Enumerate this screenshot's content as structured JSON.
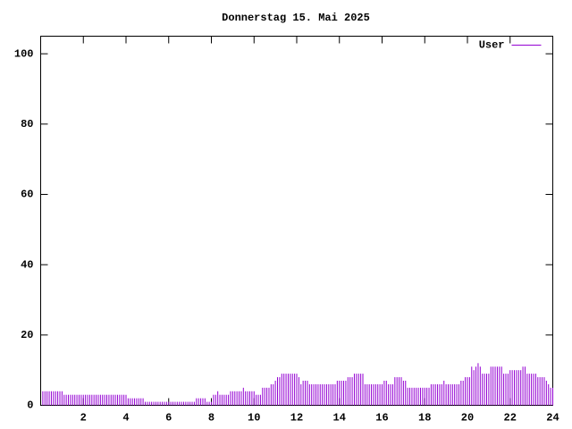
{
  "chart_data": {
    "type": "impulses",
    "title": "Donnerstag 15. Mai 2025",
    "x": [
      0.1,
      0.2,
      0.3,
      0.4,
      0.5,
      0.6,
      0.7,
      0.8,
      0.9,
      1,
      1.1,
      1.2,
      1.3,
      1.4,
      1.5,
      1.6,
      1.7,
      1.8,
      1.9,
      2,
      2.1,
      2.2,
      2.3,
      2.4,
      2.5,
      2.6,
      2.7,
      2.8,
      2.9,
      3,
      3.1,
      3.2,
      3.3,
      3.4,
      3.5,
      3.6,
      3.7,
      3.8,
      3.9,
      4,
      4.1,
      4.2,
      4.3,
      4.4,
      4.5,
      4.6,
      4.7,
      4.8,
      4.9,
      5,
      5.1,
      5.2,
      5.3,
      5.4,
      5.5,
      5.6,
      5.7,
      5.8,
      5.9,
      6,
      6.1,
      6.2,
      6.3,
      6.4,
      6.5,
      6.6,
      6.7,
      6.8,
      6.9,
      7,
      7.1,
      7.2,
      7.3,
      7.4,
      7.5,
      7.6,
      7.7,
      7.8,
      7.9,
      8,
      8.1,
      8.2,
      8.3,
      8.4,
      8.5,
      8.6,
      8.7,
      8.8,
      8.9,
      9,
      9.1,
      9.2,
      9.3,
      9.4,
      9.5,
      9.6,
      9.7,
      9.8,
      9.9,
      10,
      10.1,
      10.2,
      10.3,
      10.4,
      10.5,
      10.6,
      10.7,
      10.8,
      10.9,
      11,
      11.1,
      11.2,
      11.3,
      11.4,
      11.5,
      11.6,
      11.7,
      11.8,
      11.9,
      12,
      12.1,
      12.2,
      12.3,
      12.4,
      12.5,
      12.6,
      12.7,
      12.8,
      12.9,
      13,
      13.1,
      13.2,
      13.3,
      13.4,
      13.5,
      13.6,
      13.7,
      13.8,
      13.9,
      14,
      14.1,
      14.2,
      14.3,
      14.4,
      14.5,
      14.6,
      14.7,
      14.8,
      14.9,
      15,
      15.1,
      15.2,
      15.3,
      15.4,
      15.5,
      15.6,
      15.7,
      15.8,
      15.9,
      16,
      16.1,
      16.2,
      16.3,
      16.4,
      16.5,
      16.6,
      16.7,
      16.8,
      16.9,
      17,
      17.1,
      17.2,
      17.3,
      17.4,
      17.5,
      17.6,
      17.7,
      17.8,
      17.9,
      18,
      18.1,
      18.2,
      18.3,
      18.4,
      18.5,
      18.6,
      18.7,
      18.8,
      18.9,
      19,
      19.1,
      19.2,
      19.3,
      19.4,
      19.5,
      19.6,
      19.7,
      19.8,
      19.9,
      20,
      20.1,
      20.2,
      20.3,
      20.4,
      20.5,
      20.6,
      20.7,
      20.8,
      20.9,
      21,
      21.1,
      21.2,
      21.3,
      21.4,
      21.5,
      21.6,
      21.7,
      21.8,
      21.9,
      22,
      22.1,
      22.2,
      22.3,
      22.4,
      22.5,
      22.6,
      22.7,
      22.8,
      22.9,
      23,
      23.1,
      23.2,
      23.3,
      23.4,
      23.5,
      23.6,
      23.7,
      23.8,
      23.9,
      24
    ],
    "series": [
      {
        "name": "User",
        "color": "#9400d3",
        "values": [
          4,
          4,
          4,
          4,
          4,
          4,
          4,
          4,
          4,
          4,
          3,
          3,
          3,
          3,
          3,
          3,
          3,
          3,
          3,
          3,
          3,
          3,
          3,
          3,
          3,
          3,
          3,
          3,
          3,
          3,
          3,
          3,
          3,
          3,
          3,
          3,
          3,
          3,
          3,
          3,
          2,
          2,
          2,
          2,
          2,
          2,
          2,
          2,
          1,
          1,
          1,
          1,
          1,
          1,
          1,
          1,
          1,
          1,
          1,
          1,
          1,
          1,
          1,
          1,
          1,
          1,
          1,
          1,
          1,
          1,
          1,
          1,
          2,
          2,
          2,
          2,
          2,
          1,
          1,
          1,
          3,
          3,
          4,
          3,
          3,
          3,
          3,
          3,
          4,
          4,
          4,
          4,
          4,
          4,
          5,
          4,
          4,
          4,
          4,
          4,
          3,
          3,
          3,
          5,
          5,
          5,
          5,
          6,
          6,
          7,
          8,
          8,
          9,
          9,
          9,
          9,
          9,
          9,
          9,
          9,
          8,
          6,
          7,
          7,
          7,
          6,
          6,
          6,
          6,
          6,
          6,
          6,
          6,
          6,
          6,
          6,
          6,
          6,
          7,
          7,
          7,
          7,
          7,
          8,
          8,
          8,
          9,
          9,
          9,
          9,
          9,
          6,
          6,
          6,
          6,
          6,
          6,
          6,
          6,
          6,
          7,
          7,
          6,
          6,
          6,
          8,
          8,
          8,
          8,
          7,
          7,
          5,
          5,
          5,
          5,
          5,
          5,
          5,
          5,
          5,
          5,
          5,
          6,
          6,
          6,
          6,
          6,
          6,
          7,
          6,
          6,
          6,
          6,
          6,
          6,
          6,
          7,
          7,
          8,
          8,
          8,
          11,
          10,
          11,
          12,
          11,
          9,
          9,
          9,
          9,
          11,
          11,
          11,
          11,
          11,
          11,
          9,
          9,
          9,
          10,
          10,
          10,
          10,
          10,
          10,
          11,
          11,
          9,
          9,
          9,
          9,
          9,
          8,
          8,
          8,
          8,
          7,
          6,
          5,
          5
        ]
      }
    ],
    "xlim": [
      0,
      24
    ],
    "ylim": [
      0,
      105
    ],
    "xticks": [
      2,
      4,
      6,
      8,
      10,
      12,
      14,
      16,
      18,
      20,
      22,
      24
    ],
    "yticks": [
      0,
      20,
      40,
      60,
      80,
      100
    ],
    "legend": "top-right"
  }
}
